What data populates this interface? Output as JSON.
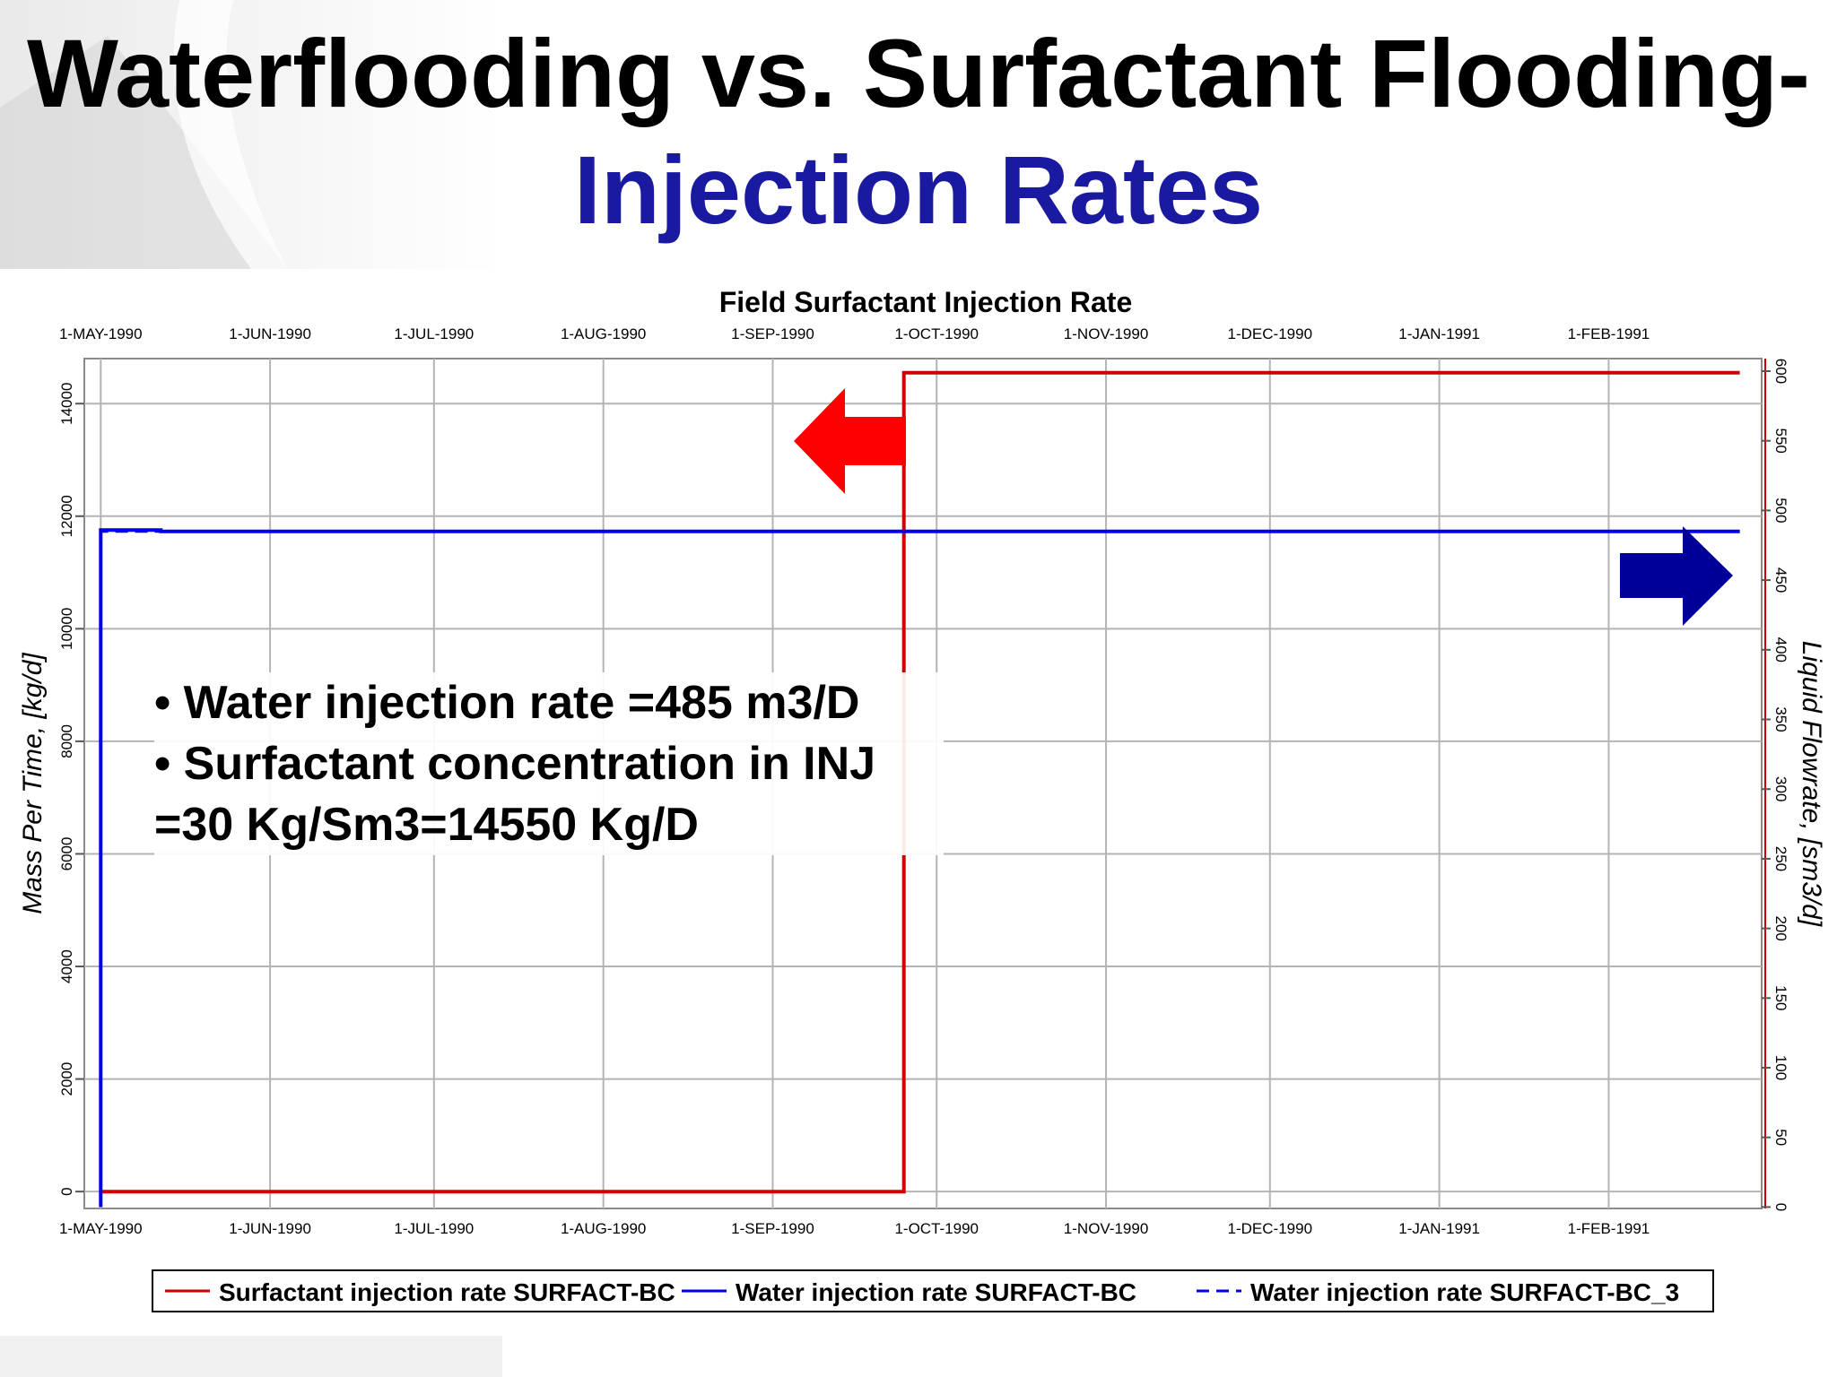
{
  "slide": {
    "title_line1": "Waterflooding vs. Surfactant Flooding-",
    "title_line2": "Injection Rates",
    "title_line2_color": "#1a1aa0"
  },
  "annotation": {
    "bullets": [
      "• Water injection rate =485 m3/D",
      "• Surfactant concentration in INJ =30 Kg/Sm3=14550 Kg/D"
    ]
  },
  "arrows": [
    {
      "name": "left-axis-arrow",
      "direction": "left",
      "color": "#ff0000"
    },
    {
      "name": "right-axis-arrow",
      "direction": "right",
      "color": "#000099"
    }
  ],
  "chart_data": {
    "type": "line",
    "title": "Field Surfactant Injection Rate",
    "x_type": "date",
    "x_ticks": [
      "1-MAY-1990",
      "1-JUN-1990",
      "1-JUL-1990",
      "1-AUG-1990",
      "1-SEP-1990",
      "1-OCT-1990",
      "1-NOV-1990",
      "1-DEC-1990",
      "1-JAN-1991",
      "1-FEB-1991"
    ],
    "xlim": [
      "1990-04-28",
      "1991-03-01"
    ],
    "ylabel_left": "Mass Per Time, [kg/d]",
    "ylim_left": [
      -300,
      14800
    ],
    "yticks_left": [
      0,
      2000,
      4000,
      6000,
      8000,
      10000,
      12000,
      14000
    ],
    "ylabel_right": "Liquid Flowrate, [sm3/d]",
    "ylim_right": [
      -1,
      609
    ],
    "yticks_right": [
      0,
      50,
      100,
      150,
      200,
      250,
      300,
      350,
      400,
      450,
      500,
      550,
      600
    ],
    "grid": true,
    "legend_position": "bottom",
    "series": [
      {
        "name": "Surfactant injection rate SURFACT-BC",
        "axis": "left",
        "color": "#cc0000",
        "style": "solid",
        "points": [
          [
            "1990-05-01",
            0
          ],
          [
            "1990-09-25",
            0
          ],
          [
            "1990-09-25",
            14550
          ],
          [
            "1991-02-25",
            14550
          ]
        ]
      },
      {
        "name": "Water injection rate SURFACT-BC",
        "axis": "right",
        "color": "#0000ee",
        "style": "solid",
        "points": [
          [
            "1990-05-01",
            0
          ],
          [
            "1990-05-01",
            486
          ],
          [
            "1990-05-12",
            486
          ],
          [
            "1990-05-12",
            485
          ],
          [
            "1991-02-25",
            485
          ]
        ]
      },
      {
        "name": "Water injection rate SURFACT-BC_3",
        "axis": "right",
        "color": "#0000ee",
        "style": "dashed",
        "points": [
          [
            "1990-05-01",
            0
          ],
          [
            "1990-05-01",
            485
          ],
          [
            "1991-02-25",
            485
          ]
        ]
      }
    ]
  }
}
